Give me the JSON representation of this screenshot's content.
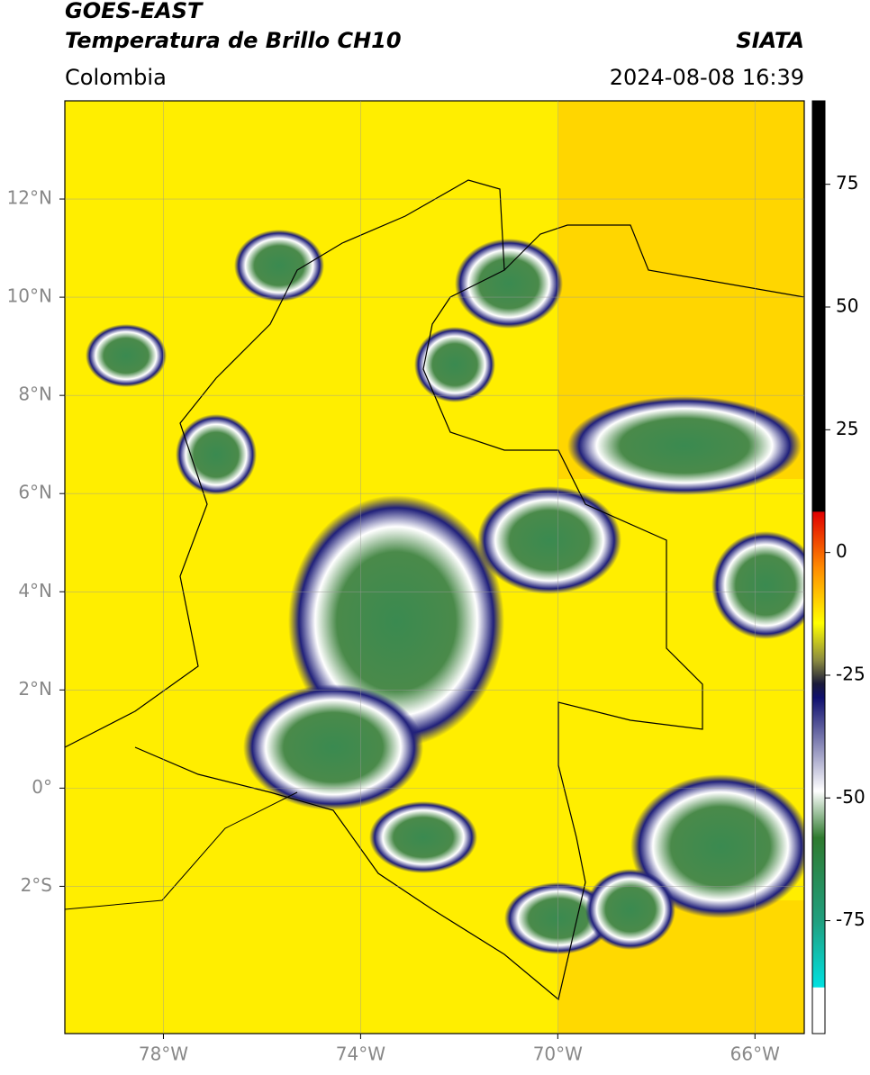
{
  "header": {
    "title": "GOES-EAST",
    "subtitle": "Temperatura de Brillo CH10",
    "region": "Colombia",
    "source": "SIATA",
    "datetime": "2024-08-08 16:39"
  },
  "map": {
    "lonlim": [
      -80,
      -65
    ],
    "latlim": [
      -5,
      14
    ],
    "lon_ticks": [
      {
        "value": -78,
        "label": "78°W"
      },
      {
        "value": -74,
        "label": "74°W"
      },
      {
        "value": -70,
        "label": "70°W"
      },
      {
        "value": -66,
        "label": "66°W"
      }
    ],
    "lat_ticks": [
      {
        "value": 12,
        "label": "12°N"
      },
      {
        "value": 10,
        "label": "10°N"
      },
      {
        "value": 8,
        "label": "8°N"
      },
      {
        "value": 6,
        "label": "6°N"
      },
      {
        "value": 4,
        "label": "4°N"
      },
      {
        "value": 2,
        "label": "2°N"
      },
      {
        "value": 0,
        "label": "0°"
      },
      {
        "value": -2,
        "label": "2°S"
      }
    ]
  },
  "colorbar": {
    "lim": [
      -98,
      92
    ],
    "ticks": [
      75,
      50,
      25,
      0,
      -25,
      -50,
      -75
    ]
  }
}
